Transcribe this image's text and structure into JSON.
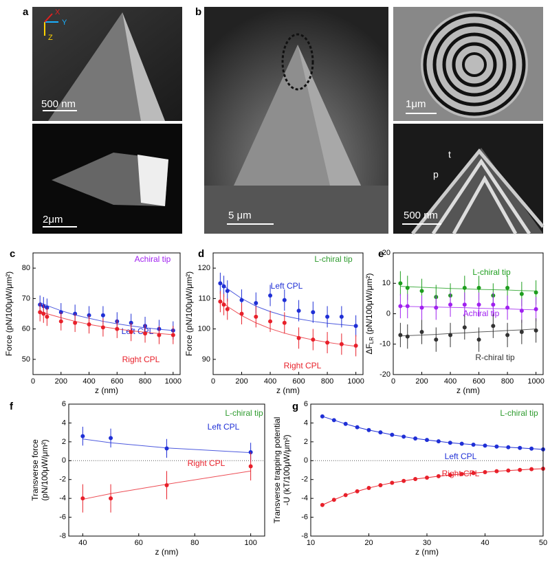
{
  "images": [
    {
      "label": "a",
      "scale": "500 nm",
      "axes": [
        "X",
        "Y",
        "Z"
      ]
    },
    {
      "scale": "2μm"
    },
    {
      "label": "b",
      "scale": "5 μm"
    },
    {
      "scale": "1μm"
    },
    {
      "scale": "500 nm",
      "annotations": [
        "t",
        "p"
      ]
    }
  ],
  "chart_data": [
    {
      "type": "scatter",
      "panel": "c",
      "annotation": "Achiral tip",
      "annotation_color": "#a020f0",
      "xlabel": "z (nm)",
      "ylabel": [
        "Force (pN/100μW/μm²)"
      ],
      "xlim": [
        0,
        1050
      ],
      "xticks": [
        0,
        200,
        400,
        600,
        800,
        1000
      ],
      "ylim": [
        45,
        85
      ],
      "yticks": [
        50,
        60,
        70,
        80
      ],
      "x": [
        50,
        75,
        100,
        200,
        300,
        400,
        500,
        600,
        700,
        800,
        900,
        1000
      ],
      "series": [
        {
          "name": "Left CPL",
          "color": "#1f2fd6",
          "values": [
            68,
            67.5,
            67,
            65.5,
            65,
            64.5,
            64.5,
            62.5,
            62,
            61,
            60,
            59.5
          ],
          "errors": [
            3,
            3,
            3,
            3,
            3,
            3,
            3,
            3,
            3,
            3,
            3,
            3
          ],
          "fit": [
            68.7,
            68.2,
            67.7,
            66,
            64.6,
            63.5,
            62.5,
            61.7,
            61,
            60.4,
            59.9,
            59.5
          ]
        },
        {
          "name": "Right CPL",
          "color": "#e8202a",
          "values": [
            65.5,
            65,
            64,
            62.5,
            62,
            61.5,
            60.5,
            60,
            59,
            58.5,
            58,
            58
          ],
          "errors": [
            3,
            3,
            3,
            3,
            3,
            3,
            3,
            3,
            3,
            3,
            3,
            3
          ],
          "fit": [
            65.8,
            65.4,
            65,
            63.7,
            62.5,
            61.5,
            60.7,
            60,
            59.4,
            58.9,
            58.5,
            58.1
          ]
        }
      ]
    },
    {
      "type": "scatter",
      "panel": "d",
      "annotation": "L-chiral tip",
      "annotation_color": "#2e9b2e",
      "xlabel": "z (nm)",
      "ylabel": [
        "Force (pN/100μW/μm²)"
      ],
      "xlim": [
        0,
        1050
      ],
      "xticks": [
        0,
        200,
        400,
        600,
        800,
        1000
      ],
      "ylim": [
        85,
        125
      ],
      "yticks": [
        90,
        100,
        110,
        120
      ],
      "x": [
        50,
        75,
        100,
        200,
        300,
        400,
        500,
        600,
        700,
        800,
        900,
        1000
      ],
      "series": [
        {
          "name": "Left CPL",
          "color": "#1f2fd6",
          "values": [
            115,
            114,
            112.5,
            109.5,
            108.5,
            111,
            109.5,
            106,
            105.5,
            104,
            104,
            101
          ],
          "errors": [
            3.5,
            3.5,
            3.5,
            3.5,
            3.5,
            3.5,
            3.5,
            3.5,
            3.5,
            3.5,
            3.5,
            3.5
          ],
          "fit": [
            115.5,
            114.3,
            113.2,
            110,
            107.5,
            105.7,
            104.3,
            103.3,
            102.5,
            101.9,
            101.4,
            101
          ]
        },
        {
          "name": "Right CPL",
          "color": "#e8202a",
          "values": [
            109,
            108,
            106.5,
            105,
            104,
            102.5,
            102,
            97,
            96.5,
            95.5,
            95,
            94.5
          ],
          "errors": [
            3.5,
            3.5,
            3.5,
            3.5,
            3.5,
            3.5,
            3.5,
            3.5,
            3.5,
            3.5,
            3.5,
            3.5
          ],
          "fit": [
            109.5,
            108.4,
            107.4,
            104.4,
            102,
            100.1,
            98.6,
            97.4,
            96.4,
            95.6,
            94.9,
            94.3
          ]
        }
      ]
    },
    {
      "type": "scatter",
      "panel": "e",
      "xlabel": "z (nm)",
      "ylabel": {
        "text": "ΔF",
        "sub": "LR",
        "unit": " (pN/100μW/μm²)"
      },
      "xlim": [
        0,
        1050
      ],
      "xticks": [
        0,
        200,
        400,
        600,
        800,
        1000
      ],
      "ylim": [
        -20,
        20
      ],
      "yticks": [
        -20,
        -10,
        0,
        10,
        20
      ],
      "x": [
        50,
        100,
        200,
        300,
        400,
        500,
        600,
        700,
        800,
        900,
        1000
      ],
      "series": [
        {
          "name": "L-chiral tip",
          "color": "#1e9e1e",
          "values": [
            10,
            8.5,
            7.5,
            5.5,
            6,
            8.5,
            8.5,
            6,
            8.5,
            6.5,
            7
          ],
          "errors": [
            4,
            4,
            4,
            4,
            4,
            4,
            4,
            4,
            4,
            4,
            4
          ],
          "fit": [
            9,
            8.9,
            8.7,
            8.5,
            8.3,
            8.2,
            8,
            7.9,
            7.8,
            7.6,
            7.5
          ]
        },
        {
          "name": "Achiral tip",
          "color": "#a020f0",
          "values": [
            2.5,
            2.5,
            2,
            2,
            3,
            3,
            3,
            3,
            2,
            1,
            1.5
          ],
          "errors": [
            4,
            4,
            4,
            4,
            4,
            4,
            4,
            4,
            4,
            4,
            4
          ],
          "fit": [
            2.5,
            2.4,
            2.3,
            2.2,
            2.1,
            2,
            1.8,
            1.7,
            1.6,
            1.4,
            1.3
          ]
        },
        {
          "name": "R-chiral tip",
          "color": "#333333",
          "values": [
            -7,
            -7.5,
            -6,
            -8.5,
            -7,
            -4.5,
            -8.5,
            -4,
            -7,
            -6,
            -5.5
          ],
          "errors": [
            4,
            4,
            4,
            4,
            4,
            4,
            4,
            4,
            4,
            4,
            4
          ],
          "fit": [
            -7.3,
            -7.2,
            -7,
            -6.8,
            -6.5,
            -6.3,
            -6,
            -5.8,
            -5.5,
            -5.3,
            -5
          ]
        }
      ]
    },
    {
      "type": "scatter",
      "panel": "f",
      "annotation": "L-chiral tip",
      "annotation_color": "#2e9b2e",
      "xlabel": "z (nm)",
      "ylabel": [
        "Transverse force",
        "(pN/100μW/μm²)"
      ],
      "zero_line": true,
      "xlim": [
        35,
        105
      ],
      "xticks": [
        40,
        60,
        80,
        100
      ],
      "ylim": [
        -8,
        6
      ],
      "yticks": [
        -8,
        -6,
        -4,
        -2,
        0,
        2,
        4,
        6
      ],
      "x": [
        40,
        50,
        70,
        100
      ],
      "series": [
        {
          "name": "Left CPL",
          "color": "#1f2fd6",
          "values": [
            2.6,
            2.4,
            1.3,
            0.9
          ],
          "errors": [
            1,
            1,
            1,
            1
          ],
          "fit": [
            2.3,
            1.9,
            1.35,
            0.85
          ]
        },
        {
          "name": "Right CPL",
          "color": "#e8202a",
          "values": [
            -4,
            -4,
            -2.6,
            -0.6
          ],
          "errors": [
            1.5,
            1.5,
            1.5,
            1.5
          ],
          "fit": [
            -4.1,
            -3.5,
            -2.5,
            -1.1
          ]
        }
      ]
    },
    {
      "type": "line",
      "panel": "g",
      "annotation": "L-chiral tip",
      "annotation_color": "#2e9b2e",
      "xlabel": "z (nm)",
      "ylabel": [
        "Transverse trapping potential",
        "-U (kT/100μW/μm²)"
      ],
      "zero_line": true,
      "xlim": [
        10,
        50
      ],
      "xticks": [
        10,
        20,
        30,
        40,
        50
      ],
      "ylim": [
        -8,
        6
      ],
      "yticks": [
        -8,
        -6,
        -4,
        -2,
        0,
        2,
        4,
        6
      ],
      "x": [
        12,
        14,
        16,
        18,
        20,
        22,
        24,
        26,
        28,
        30,
        32,
        34,
        36,
        38,
        40,
        42,
        44,
        46,
        48,
        50
      ],
      "series": [
        {
          "name": "Left CPL",
          "color": "#1f2fd6",
          "values": [
            4.7,
            4.3,
            3.9,
            3.55,
            3.25,
            3,
            2.75,
            2.55,
            2.35,
            2.2,
            2.05,
            1.9,
            1.8,
            1.7,
            1.6,
            1.5,
            1.42,
            1.35,
            1.28,
            1.2
          ]
        },
        {
          "name": "Right CPL",
          "color": "#e8202a",
          "values": [
            -4.7,
            -4.15,
            -3.65,
            -3.25,
            -2.9,
            -2.6,
            -2.35,
            -2.15,
            -1.95,
            -1.8,
            -1.65,
            -1.52,
            -1.42,
            -1.32,
            -1.22,
            -1.12,
            -1.05,
            -0.98,
            -0.9,
            -0.85
          ]
        }
      ]
    }
  ]
}
